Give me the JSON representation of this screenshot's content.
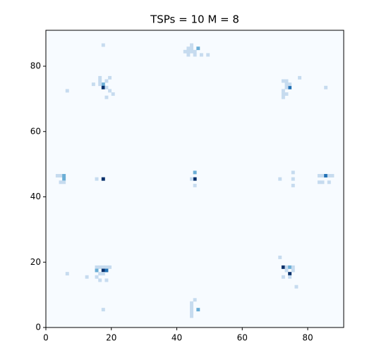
{
  "chart_data": {
    "type": "heatmap",
    "title": "TSPs = 10 M = 8",
    "xlim": [
      0,
      91
    ],
    "ylim": [
      0,
      91
    ],
    "xticks": [
      0,
      20,
      40,
      60,
      80
    ],
    "yticks": [
      0,
      20,
      40,
      60,
      80
    ],
    "colormap": [
      "#f7fbff",
      "#c6dbef",
      "#6baed6",
      "#2171b5",
      "#08306b"
    ],
    "clim": [
      0,
      4
    ],
    "x": [
      44,
      43,
      44,
      42,
      43,
      44,
      45,
      43,
      45,
      47,
      49,
      46,
      17,
      17,
      16,
      18,
      16,
      19,
      16,
      14,
      18,
      19,
      20,
      18,
      6,
      17,
      72,
      73,
      74,
      73,
      72,
      73,
      72,
      72,
      74,
      73,
      77,
      85,
      3,
      4,
      5,
      5,
      4,
      5,
      17,
      15,
      45,
      45,
      44,
      45,
      83,
      84,
      85,
      86,
      87,
      83,
      84,
      86,
      75,
      75,
      75,
      71,
      15,
      16,
      17,
      18,
      19,
      15,
      17,
      18,
      16,
      17,
      15,
      16,
      18,
      12,
      6,
      17,
      72,
      73,
      74,
      75,
      73,
      74,
      75,
      71,
      72,
      74,
      76,
      45,
      44,
      44,
      44,
      44,
      44,
      46
    ],
    "y": [
      86,
      85,
      85,
      84,
      84,
      84,
      84,
      83,
      83,
      83,
      83,
      85,
      74,
      73,
      75,
      75,
      74,
      76,
      76,
      74,
      73,
      72,
      71,
      70,
      72,
      86,
      75,
      74,
      73,
      73,
      72,
      71,
      71,
      70,
      74,
      75,
      76,
      73,
      46,
      46,
      46,
      45,
      44,
      44,
      45,
      45,
      47,
      45,
      45,
      43,
      46,
      46,
      46,
      46,
      46,
      44,
      44,
      44,
      47,
      45,
      43,
      45,
      18,
      18,
      18,
      18,
      18,
      17,
      17,
      17,
      16,
      16,
      15,
      14,
      14,
      15,
      16,
      5,
      18,
      18,
      18,
      18,
      17,
      16,
      17,
      21,
      15,
      15,
      12,
      8,
      7,
      6,
      5,
      4,
      3,
      5
    ],
    "values": [
      1,
      1,
      1,
      1,
      1,
      1,
      1,
      1,
      1,
      1,
      1,
      2,
      2,
      4,
      1,
      1,
      1,
      1,
      1,
      1,
      1,
      1,
      1,
      1,
      1,
      1,
      1,
      1,
      3,
      1,
      1,
      1,
      1,
      1,
      1,
      1,
      1,
      1,
      1,
      1,
      2,
      2,
      1,
      1,
      4,
      1,
      2,
      4,
      1,
      1,
      1,
      1,
      3,
      1,
      1,
      1,
      1,
      1,
      1,
      1,
      1,
      1,
      1,
      1,
      1,
      1,
      1,
      2,
      4,
      3,
      1,
      1,
      1,
      1,
      1,
      1,
      1,
      1,
      4,
      1,
      2,
      1,
      1,
      4,
      1,
      1,
      1,
      1,
      1,
      1,
      1,
      1,
      1,
      1,
      1,
      2
    ]
  }
}
